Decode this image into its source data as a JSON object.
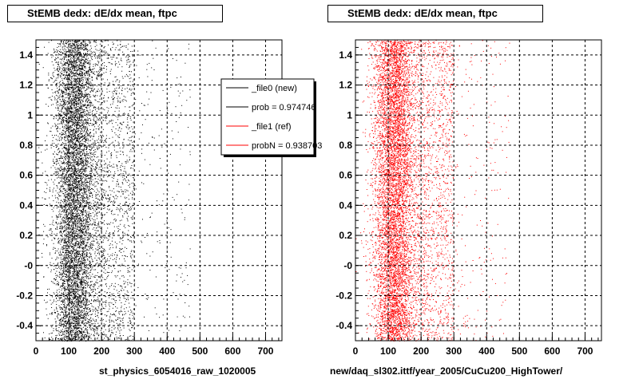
{
  "chart_data": [
    {
      "type": "scatter",
      "title": "StEMB dedx: dE/dx mean, ftpc",
      "xlabel": "st_physics_6054016_raw_1020005",
      "ylabel": "",
      "xlim": [
        0,
        750
      ],
      "ylim": [
        -0.5,
        1.5
      ],
      "x_ticks": [
        "0",
        "100",
        "200",
        "300",
        "400",
        "500",
        "600",
        "700"
      ],
      "y_ticks": [
        "-0.4",
        "-0.2",
        "-0",
        "0.2",
        "0.4",
        "0.6",
        "0.8",
        "1",
        "1.2",
        "1.4"
      ],
      "grid": true,
      "legend_position": "top-right",
      "legend": [
        "_file0 (new)",
        "prob = 0.974746",
        "_file1 (ref)",
        "probN = 0.938703"
      ],
      "legend_colors": [
        "#000000",
        "#000000",
        "#ff0000",
        "#ff0000"
      ],
      "series": [
        {
          "name": "_file0 (new)",
          "color": "#000000",
          "distribution": {
            "x_center": 118,
            "x_core_halfwidth": 60,
            "x_tail_max": 470,
            "y_range": [
              -0.5,
              1.5
            ]
          }
        }
      ]
    },
    {
      "type": "scatter",
      "title": "StEMB dedx: dE/dx mean, ftpc",
      "xlabel": "new/daq_sl302.ittf/year_2005/CuCu200_HighTower/",
      "ylabel": "",
      "xlim": [
        0,
        750
      ],
      "ylim": [
        -0.5,
        1.5
      ],
      "x_ticks": [
        "0",
        "100",
        "200",
        "300",
        "400",
        "500",
        "600",
        "700"
      ],
      "y_ticks": [
        "-0.4",
        "-0.2",
        "-0",
        "0.2",
        "0.4",
        "0.6",
        "0.8",
        "1",
        "1.2",
        "1.4"
      ],
      "grid": true,
      "series": [
        {
          "name": "_file1 (ref)",
          "color": "#ff0000",
          "distribution": {
            "x_center": 118,
            "x_core_halfwidth": 60,
            "x_tail_max": 470,
            "y_range": [
              -0.5,
              1.5
            ]
          }
        }
      ]
    }
  ]
}
